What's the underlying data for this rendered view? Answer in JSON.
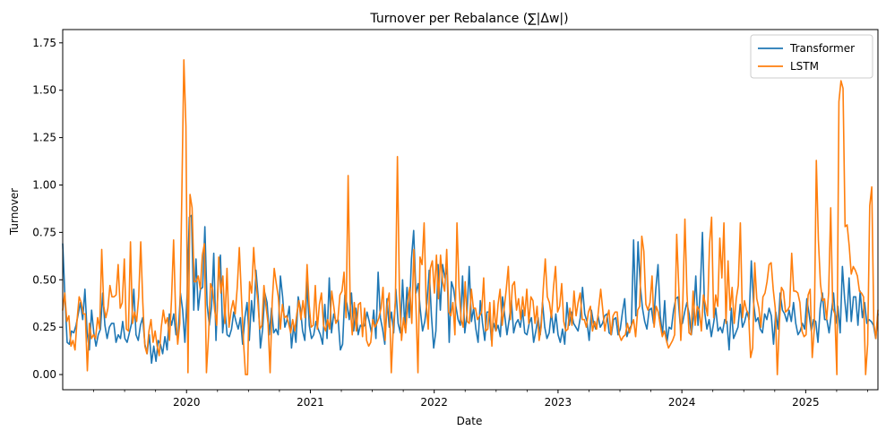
{
  "chart_data": {
    "type": "line",
    "title": "Turnover per Rebalance (∑|Δw|)",
    "xlabel": "Date",
    "ylabel": "Turnover",
    "xlim": [
      "2019-01",
      "2025-07"
    ],
    "ylim": [
      -0.08,
      1.82
    ],
    "x_tick_labels": [
      "2020",
      "2021",
      "2022",
      "2023",
      "2024",
      "2025"
    ],
    "y_ticks": [
      0.0,
      0.25,
      0.5,
      0.75,
      1.0,
      1.25,
      1.5,
      1.75
    ],
    "y_tick_labels": [
      "0.00",
      "0.25",
      "0.50",
      "0.75",
      "1.00",
      "1.25",
      "1.50",
      "1.75"
    ],
    "grid": false,
    "legend_position": "top-right",
    "frequency": "weekly",
    "series": [
      {
        "name": "Transformer",
        "color": "#1f77b4",
        "values": [
          0.69,
          0.41,
          0.17,
          0.16,
          0.23,
          0.22,
          0.26,
          0.32,
          0.38,
          0.29,
          0.45,
          0.22,
          0.13,
          0.34,
          0.22,
          0.15,
          0.21,
          0.24,
          0.43,
          0.26,
          0.19,
          0.25,
          0.27,
          0.27,
          0.17,
          0.21,
          0.19,
          0.28,
          0.19,
          0.17,
          0.22,
          0.27,
          0.45,
          0.21,
          0.18,
          0.26,
          0.3,
          0.16,
          0.11,
          0.21,
          0.06,
          0.15,
          0.07,
          0.18,
          0.16,
          0.11,
          0.2,
          0.13,
          0.32,
          0.26,
          0.32,
          0.21,
          0.21,
          0.43,
          0.34,
          0.17,
          0.42,
          0.83,
          0.84,
          0.34,
          0.61,
          0.34,
          0.45,
          0.46,
          0.78,
          0.37,
          0.26,
          0.36,
          0.64,
          0.18,
          0.49,
          0.63,
          0.22,
          0.35,
          0.21,
          0.2,
          0.24,
          0.33,
          0.28,
          0.24,
          0.3,
          0.16,
          0.3,
          0.38,
          0.18,
          0.39,
          0.28,
          0.55,
          0.41,
          0.14,
          0.24,
          0.43,
          0.38,
          0.21,
          0.35,
          0.22,
          0.24,
          0.21,
          0.52,
          0.41,
          0.25,
          0.29,
          0.36,
          0.14,
          0.26,
          0.17,
          0.41,
          0.35,
          0.23,
          0.18,
          0.49,
          0.26,
          0.19,
          0.21,
          0.28,
          0.24,
          0.21,
          0.16,
          0.37,
          0.19,
          0.51,
          0.22,
          0.32,
          0.28,
          0.29,
          0.13,
          0.16,
          0.42,
          0.37,
          0.29,
          0.43,
          0.23,
          0.35,
          0.21,
          0.26,
          0.25,
          0.26,
          0.33,
          0.28,
          0.22,
          0.34,
          0.19,
          0.54,
          0.3,
          0.24,
          0.16,
          0.4,
          0.25,
          0.33,
          0.22,
          0.45,
          0.27,
          0.22,
          0.5,
          0.25,
          0.46,
          0.3,
          0.61,
          0.76,
          0.43,
          0.48,
          0.34,
          0.23,
          0.28,
          0.38,
          0.55,
          0.31,
          0.14,
          0.23,
          0.58,
          0.34,
          0.58,
          0.51,
          0.56,
          0.17,
          0.49,
          0.45,
          0.36,
          0.29,
          0.26,
          0.52,
          0.22,
          0.32,
          0.57,
          0.28,
          0.35,
          0.24,
          0.17,
          0.39,
          0.27,
          0.18,
          0.33,
          0.33,
          0.18,
          0.27,
          0.23,
          0.26,
          0.2,
          0.41,
          0.31,
          0.21,
          0.29,
          0.39,
          0.22,
          0.27,
          0.29,
          0.25,
          0.34,
          0.22,
          0.21,
          0.27,
          0.3,
          0.17,
          0.23,
          0.3,
          0.21,
          0.38,
          0.25,
          0.19,
          0.22,
          0.33,
          0.22,
          0.32,
          0.21,
          0.17,
          0.24,
          0.16,
          0.38,
          0.26,
          0.33,
          0.27,
          0.25,
          0.23,
          0.3,
          0.46,
          0.32,
          0.28,
          0.18,
          0.34,
          0.27,
          0.24,
          0.31,
          0.25,
          0.27,
          0.31,
          0.32,
          0.22,
          0.21,
          0.29,
          0.3,
          0.21,
          0.24,
          0.33,
          0.4,
          0.2,
          0.24,
          0.26,
          0.71,
          0.31,
          0.7,
          0.47,
          0.35,
          0.28,
          0.24,
          0.34,
          0.35,
          0.27,
          0.45,
          0.58,
          0.31,
          0.21,
          0.39,
          0.17,
          0.25,
          0.24,
          0.34,
          0.4,
          0.41,
          0.26,
          0.27,
          0.33,
          0.38,
          0.32,
          0.21,
          0.31,
          0.52,
          0.26,
          0.44,
          0.75,
          0.33,
          0.24,
          0.29,
          0.2,
          0.27,
          0.35,
          0.23,
          0.25,
          0.22,
          0.29,
          0.28,
          0.13,
          0.35,
          0.19,
          0.22,
          0.25,
          0.37,
          0.25,
          0.28,
          0.33,
          0.29,
          0.6,
          0.38,
          0.28,
          0.3,
          0.24,
          0.22,
          0.32,
          0.29,
          0.35,
          0.31,
          0.16,
          0.33,
          0.24,
          0.43,
          0.34,
          0.32,
          0.28,
          0.34,
          0.28,
          0.38,
          0.27,
          0.21,
          0.23,
          0.27,
          0.24,
          0.4,
          0.32,
          0.23,
          0.29,
          0.28,
          0.17,
          0.35,
          0.43,
          0.29,
          0.29,
          0.22,
          0.32,
          0.43,
          0.27,
          0.36,
          0.22,
          0.57,
          0.4,
          0.28,
          0.51,
          0.28,
          0.41,
          0.41,
          0.26,
          0.44,
          0.3,
          0.38,
          0.27,
          0.29,
          0.28,
          0.26,
          0.19,
          0.32
        ]
      },
      {
        "name": "LSTM",
        "color": "#ff7f0e",
        "values": [
          0.34,
          0.43,
          0.28,
          0.31,
          0.15,
          0.18,
          0.13,
          0.29,
          0.41,
          0.38,
          0.32,
          0.32,
          0.02,
          0.27,
          0.19,
          0.21,
          0.19,
          0.3,
          0.24,
          0.66,
          0.36,
          0.3,
          0.35,
          0.47,
          0.41,
          0.41,
          0.42,
          0.58,
          0.35,
          0.38,
          0.61,
          0.24,
          0.23,
          0.7,
          0.27,
          0.33,
          0.28,
          0.41,
          0.7,
          0.38,
          0.15,
          0.11,
          0.23,
          0.29,
          0.17,
          0.23,
          0.15,
          0.1,
          0.25,
          0.34,
          0.27,
          0.3,
          0.18,
          0.4,
          0.71,
          0.32,
          0.16,
          0.27,
          0.94,
          1.66,
          1.31,
          0.01,
          0.95,
          0.88,
          0.49,
          0.49,
          0.52,
          0.45,
          0.63,
          0.69,
          0.01,
          0.2,
          0.48,
          0.45,
          0.34,
          0.26,
          0.62,
          0.43,
          0.52,
          0.27,
          0.56,
          0.25,
          0.34,
          0.39,
          0.32,
          0.46,
          0.67,
          0.42,
          0.18,
          0.0,
          0.0,
          0.49,
          0.43,
          0.67,
          0.5,
          0.39,
          0.24,
          0.26,
          0.47,
          0.36,
          0.27,
          0.01,
          0.38,
          0.56,
          0.48,
          0.41,
          0.24,
          0.37,
          0.3,
          0.31,
          0.27,
          0.22,
          0.29,
          0.23,
          0.32,
          0.39,
          0.29,
          0.39,
          0.3,
          0.58,
          0.37,
          0.25,
          0.26,
          0.47,
          0.24,
          0.37,
          0.43,
          0.26,
          0.23,
          0.29,
          0.24,
          0.44,
          0.36,
          0.27,
          0.29,
          0.42,
          0.44,
          0.54,
          0.3,
          1.05,
          0.37,
          0.21,
          0.38,
          0.23,
          0.37,
          0.38,
          0.2,
          0.35,
          0.18,
          0.15,
          0.17,
          0.29,
          0.25,
          0.27,
          0.3,
          0.35,
          0.46,
          0.18,
          0.37,
          0.43,
          0.01,
          0.25,
          0.38,
          1.15,
          0.42,
          0.18,
          0.3,
          0.22,
          0.38,
          0.46,
          0.27,
          0.66,
          0.37,
          0.01,
          0.62,
          0.58,
          0.8,
          0.38,
          0.24,
          0.56,
          0.6,
          0.43,
          0.63,
          0.4,
          0.63,
          0.49,
          0.44,
          0.66,
          0.33,
          0.31,
          0.38,
          0.21,
          0.8,
          0.46,
          0.29,
          0.25,
          0.49,
          0.28,
          0.27,
          0.45,
          0.35,
          0.35,
          0.29,
          0.31,
          0.33,
          0.51,
          0.23,
          0.24,
          0.38,
          0.15,
          0.39,
          0.23,
          0.37,
          0.45,
          0.26,
          0.35,
          0.45,
          0.57,
          0.29,
          0.47,
          0.49,
          0.34,
          0.4,
          0.29,
          0.41,
          0.31,
          0.45,
          0.27,
          0.41,
          0.39,
          0.27,
          0.36,
          0.18,
          0.25,
          0.45,
          0.61,
          0.41,
          0.38,
          0.3,
          0.46,
          0.57,
          0.33,
          0.36,
          0.48,
          0.28,
          0.23,
          0.24,
          0.35,
          0.26,
          0.44,
          0.31,
          0.38,
          0.43,
          0.29,
          0.29,
          0.25,
          0.33,
          0.36,
          0.23,
          0.28,
          0.24,
          0.35,
          0.45,
          0.34,
          0.23,
          0.3,
          0.34,
          0.21,
          0.31,
          0.33,
          0.33,
          0.21,
          0.18,
          0.2,
          0.21,
          0.27,
          0.22,
          0.26,
          0.29,
          0.2,
          0.34,
          0.36,
          0.73,
          0.65,
          0.37,
          0.34,
          0.38,
          0.52,
          0.25,
          0.36,
          0.33,
          0.26,
          0.2,
          0.23,
          0.18,
          0.14,
          0.16,
          0.18,
          0.21,
          0.74,
          0.46,
          0.18,
          0.39,
          0.82,
          0.43,
          0.22,
          0.21,
          0.44,
          0.26,
          0.36,
          0.34,
          0.23,
          0.42,
          0.37,
          0.31,
          0.69,
          0.83,
          0.3,
          0.42,
          0.36,
          0.72,
          0.51,
          0.8,
          0.27,
          0.6,
          0.34,
          0.46,
          0.27,
          0.4,
          0.47,
          0.8,
          0.3,
          0.39,
          0.34,
          0.32,
          0.09,
          0.14,
          0.59,
          0.4,
          0.35,
          0.25,
          0.41,
          0.43,
          0.49,
          0.58,
          0.59,
          0.45,
          0.35,
          0.0,
          0.27,
          0.46,
          0.44,
          0.33,
          0.34,
          0.36,
          0.64,
          0.44,
          0.44,
          0.43,
          0.38,
          0.23,
          0.2,
          0.21,
          0.42,
          0.45,
          0.09,
          0.24,
          1.13,
          0.71,
          0.48,
          0.39,
          0.4,
          0.29,
          0.43,
          0.88,
          0.35,
          0.32,
          0.0,
          1.44,
          1.55,
          1.51,
          0.78,
          0.79,
          0.68,
          0.53,
          0.57,
          0.55,
          0.52,
          0.44,
          0.43,
          0.41,
          0.0,
          0.16,
          0.89,
          0.99,
          0.27,
          0.19,
          0.34
        ]
      }
    ]
  }
}
